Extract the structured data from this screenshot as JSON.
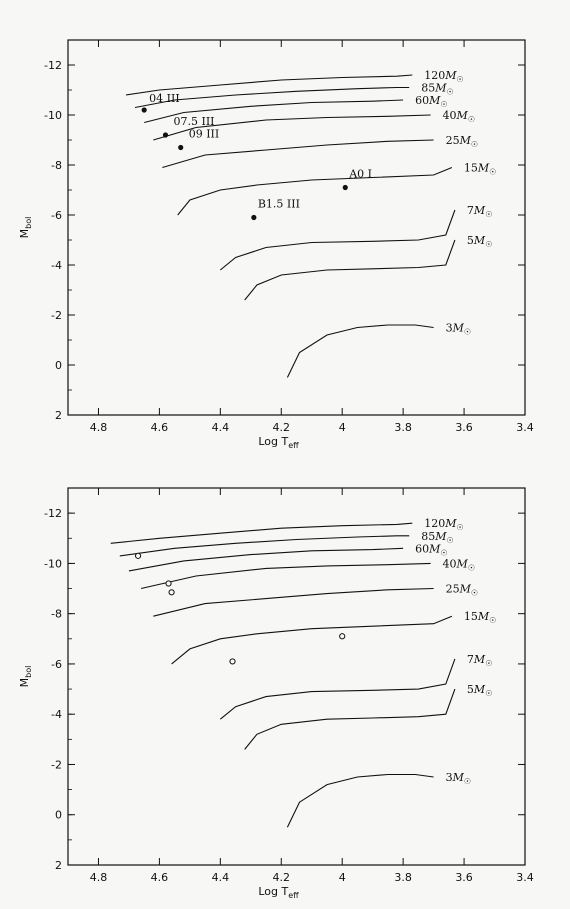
{
  "chart_data": [
    {
      "type": "line",
      "title": "",
      "xlabel": "Log T",
      "xlabel_sub": "eff",
      "ylabel": "M",
      "ylabel_sub": "bol",
      "xlim": [
        4.9,
        3.4
      ],
      "ylim": [
        2,
        -13
      ],
      "x_ticks": [
        "4.8",
        "4.6",
        "4.4",
        "4.2",
        "4",
        "3.8",
        "3.6",
        "3.4"
      ],
      "y_ticks": [
        "-12",
        "-10",
        "-8",
        "-6",
        "-4",
        "-2",
        "0",
        "2"
      ],
      "series": [
        {
          "name": "120M☉",
          "label": "120",
          "x": [
            4.71,
            4.6,
            4.4,
            4.2,
            4.0,
            3.82,
            3.77
          ],
          "y": [
            -10.8,
            -11.0,
            -11.2,
            -11.4,
            -11.5,
            -11.55,
            -11.6
          ]
        },
        {
          "name": "85M☉",
          "label": "85",
          "x": [
            4.68,
            4.55,
            4.35,
            4.15,
            3.95,
            3.82,
            3.78
          ],
          "y": [
            -10.3,
            -10.6,
            -10.8,
            -10.95,
            -11.05,
            -11.1,
            -11.1
          ]
        },
        {
          "name": "60M☉",
          "label": "60",
          "x": [
            4.65,
            4.52,
            4.3,
            4.1,
            3.9,
            3.8
          ],
          "y": [
            -9.7,
            -10.1,
            -10.35,
            -10.5,
            -10.55,
            -10.6
          ]
        },
        {
          "name": "40M☉",
          "label": "40",
          "x": [
            4.62,
            4.48,
            4.25,
            4.05,
            3.85,
            3.71
          ],
          "y": [
            -9.0,
            -9.5,
            -9.8,
            -9.9,
            -9.95,
            -10.0
          ]
        },
        {
          "name": "25M☉",
          "label": "25",
          "x": [
            4.59,
            4.45,
            4.25,
            4.05,
            3.85,
            3.7
          ],
          "y": [
            -7.9,
            -8.4,
            -8.6,
            -8.8,
            -8.95,
            -9.0
          ]
        },
        {
          "name": "15M☉",
          "label": "15",
          "x": [
            4.54,
            4.5,
            4.4,
            4.28,
            4.1,
            3.9,
            3.7,
            3.64
          ],
          "y": [
            -6.0,
            -6.6,
            -7.0,
            -7.2,
            -7.4,
            -7.5,
            -7.6,
            -7.9
          ]
        },
        {
          "name": "7M☉",
          "label": "7",
          "x": [
            4.4,
            4.35,
            4.25,
            4.1,
            3.9,
            3.75,
            3.66,
            3.63
          ],
          "y": [
            -3.8,
            -4.3,
            -4.7,
            -4.9,
            -4.95,
            -5.0,
            -5.2,
            -6.2
          ]
        },
        {
          "name": "5M☉",
          "label": "5",
          "x": [
            4.32,
            4.28,
            4.2,
            4.05,
            3.9,
            3.75,
            3.66,
            3.63
          ],
          "y": [
            -2.6,
            -3.2,
            -3.6,
            -3.8,
            -3.85,
            -3.9,
            -4.0,
            -5.0
          ]
        },
        {
          "name": "3M☉",
          "label": "3",
          "x": [
            4.18,
            4.14,
            4.05,
            3.95,
            3.85,
            3.76,
            3.7
          ],
          "y": [
            0.5,
            -0.5,
            -1.2,
            -1.5,
            -1.6,
            -1.6,
            -1.5
          ]
        }
      ],
      "track_unit_label": "M",
      "track_unit_sub": "☉",
      "annotations": [
        {
          "label": "04  III",
          "x": 4.65,
          "y": -10.2
        },
        {
          "label": "07.5  III",
          "x": 4.58,
          "y": -9.2
        },
        {
          "label": "09  III",
          "x": 4.53,
          "y": -8.7
        },
        {
          "label": "A0  I",
          "x": 3.99,
          "y": -7.1
        },
        {
          "label": "B1.5  III",
          "x": 4.29,
          "y": -5.9
        }
      ]
    },
    {
      "type": "line",
      "title": "",
      "xlabel": "Log T",
      "xlabel_sub": "eff",
      "ylabel": "M",
      "ylabel_sub": "bol",
      "xlim": [
        4.9,
        3.4
      ],
      "ylim": [
        2,
        -13
      ],
      "x_ticks": [
        "4.8",
        "4.6",
        "4.4",
        "4.2",
        "4",
        "3.8",
        "3.6",
        "3.4"
      ],
      "y_ticks": [
        "-12",
        "-10",
        "-8",
        "-6",
        "-4",
        "-2",
        "0",
        "2"
      ],
      "series": [
        {
          "name": "120M☉",
          "label": "120",
          "x": [
            4.76,
            4.6,
            4.4,
            4.2,
            4.0,
            3.82,
            3.77
          ],
          "y": [
            -10.8,
            -11.0,
            -11.2,
            -11.4,
            -11.5,
            -11.55,
            -11.6
          ]
        },
        {
          "name": "85M☉",
          "label": "85",
          "x": [
            4.73,
            4.55,
            4.35,
            4.15,
            3.95,
            3.82,
            3.78
          ],
          "y": [
            -10.3,
            -10.6,
            -10.8,
            -10.95,
            -11.05,
            -11.1,
            -11.1
          ]
        },
        {
          "name": "60M☉",
          "label": "60",
          "x": [
            4.7,
            4.52,
            4.3,
            4.1,
            3.9,
            3.8
          ],
          "y": [
            -9.7,
            -10.1,
            -10.35,
            -10.5,
            -10.55,
            -10.6
          ]
        },
        {
          "name": "40M☉",
          "label": "40",
          "x": [
            4.66,
            4.48,
            4.25,
            4.05,
            3.85,
            3.71
          ],
          "y": [
            -9.0,
            -9.5,
            -9.8,
            -9.9,
            -9.95,
            -10.0
          ]
        },
        {
          "name": "25M☉",
          "label": "25",
          "x": [
            4.62,
            4.45,
            4.25,
            4.05,
            3.85,
            3.7
          ],
          "y": [
            -7.9,
            -8.4,
            -8.6,
            -8.8,
            -8.95,
            -9.0
          ]
        },
        {
          "name": "15M☉",
          "label": "15",
          "x": [
            4.56,
            4.5,
            4.4,
            4.28,
            4.1,
            3.9,
            3.7,
            3.64
          ],
          "y": [
            -6.0,
            -6.6,
            -7.0,
            -7.2,
            -7.4,
            -7.5,
            -7.6,
            -7.9
          ]
        },
        {
          "name": "7M☉",
          "label": "7",
          "x": [
            4.4,
            4.35,
            4.25,
            4.1,
            3.9,
            3.75,
            3.66,
            3.63
          ],
          "y": [
            -3.8,
            -4.3,
            -4.7,
            -4.9,
            -4.95,
            -5.0,
            -5.2,
            -6.2
          ]
        },
        {
          "name": "5M☉",
          "label": "5",
          "x": [
            4.32,
            4.28,
            4.2,
            4.05,
            3.9,
            3.75,
            3.66,
            3.63
          ],
          "y": [
            -2.6,
            -3.2,
            -3.6,
            -3.8,
            -3.85,
            -3.9,
            -4.0,
            -5.0
          ]
        },
        {
          "name": "3M☉",
          "label": "3",
          "x": [
            4.18,
            4.14,
            4.05,
            3.95,
            3.85,
            3.76,
            3.7
          ],
          "y": [
            0.5,
            -0.5,
            -1.2,
            -1.5,
            -1.6,
            -1.6,
            -1.5
          ]
        }
      ],
      "track_unit_label": "M",
      "track_unit_sub": "☉",
      "markers": [
        {
          "x": 4.67,
          "y": -10.3
        },
        {
          "x": 4.57,
          "y": -9.2
        },
        {
          "x": 4.56,
          "y": -8.85
        },
        {
          "x": 4.0,
          "y": -7.1
        },
        {
          "x": 4.36,
          "y": -6.1
        }
      ]
    }
  ]
}
